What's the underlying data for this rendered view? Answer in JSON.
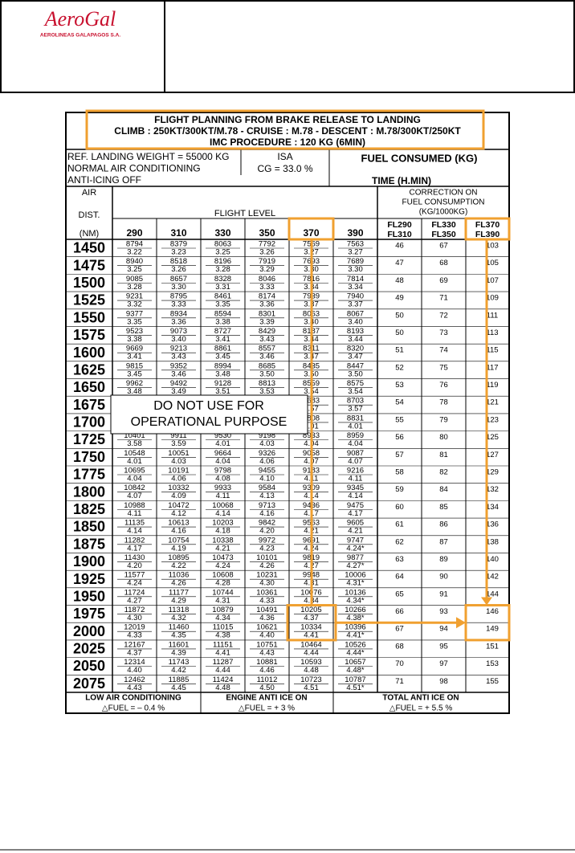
{
  "header": {
    "logo": "AeroGal",
    "logo_sub": "AEROLINEAS GALAPAGOS S.A."
  },
  "table": {
    "title_lines": [
      "FLIGHT PLANNING FROM BRAKE RELEASE TO LANDING",
      "CLIMB : 250KT/300KT/M.78 - CRUISE : M.78 - DESCENT : M.78/300KT/250KT",
      "IMC PROCEDURE : 120 KG (6MIN)"
    ],
    "ref_lines": [
      "REF. LANDING WEIGHT = 55000 KG",
      "NORMAL AIR CONDITIONING",
      "ANTI-ICING OFF"
    ],
    "isa": "ISA",
    "cg": "CG = 33.0 %",
    "fuel_consumed": "FUEL CONSUMED (KG)",
    "time": "TIME (H.MIN)",
    "air_dist": [
      "AIR",
      "DIST.",
      "(NM)"
    ],
    "flight_level": "FLIGHT LEVEL",
    "levels": [
      "290",
      "310",
      "330",
      "350",
      "370",
      "390"
    ],
    "correction": [
      "CORRECTION ON",
      "FUEL CONSUMPTION",
      "(KG/1000KG)"
    ],
    "correction_cols": [
      [
        "FL290",
        "FL310"
      ],
      [
        "FL330",
        "FL350"
      ],
      [
        "FL370",
        "FL390"
      ]
    ],
    "rows": [
      {
        "dist": "1450",
        "fuel": [
          "8794",
          "8379",
          "8063",
          "7792",
          "7569",
          "7563"
        ],
        "time": [
          "3.22",
          "3.23",
          "3.25",
          "3.26",
          "3.27",
          "3.27"
        ],
        "corr": [
          "46",
          "67",
          "103"
        ]
      },
      {
        "dist": "1475",
        "fuel": [
          "8940",
          "8518",
          "8196",
          "7919",
          "7693",
          "7689"
        ],
        "time": [
          "3.25",
          "3.26",
          "3.28",
          "3.29",
          "3.30",
          "3.30"
        ],
        "corr": [
          "47",
          "68",
          "105"
        ]
      },
      {
        "dist": "1500",
        "fuel": [
          "9085",
          "8657",
          "8328",
          "8046",
          "7816",
          "7814"
        ],
        "time": [
          "3.28",
          "3.30",
          "3.31",
          "3.33",
          "3.34",
          "3.34"
        ],
        "corr": [
          "48",
          "69",
          "107"
        ]
      },
      {
        "dist": "1525",
        "fuel": [
          "9231",
          "8795",
          "8461",
          "8174",
          "7939",
          "7940"
        ],
        "time": [
          "3.32",
          "3.33",
          "3.35",
          "3.36",
          "3.37",
          "3.37"
        ],
        "corr": [
          "49",
          "71",
          "109"
        ]
      },
      {
        "dist": "1550",
        "fuel": [
          "9377",
          "8934",
          "8594",
          "8301",
          "8063",
          "8067"
        ],
        "time": [
          "3.35",
          "3.36",
          "3.38",
          "3.39",
          "3.40",
          "3.40"
        ],
        "corr": [
          "50",
          "72",
          "111"
        ]
      },
      {
        "dist": "1575",
        "fuel": [
          "9523",
          "9073",
          "8727",
          "8429",
          "8187",
          "8193"
        ],
        "time": [
          "3.38",
          "3.40",
          "3.41",
          "3.43",
          "3.44",
          "3.44"
        ],
        "corr": [
          "50",
          "73",
          "113"
        ]
      },
      {
        "dist": "1600",
        "fuel": [
          "9669",
          "9213",
          "8861",
          "8557",
          "8311",
          "8320"
        ],
        "time": [
          "3.41",
          "3.43",
          "3.45",
          "3.46",
          "3.47",
          "3.47"
        ],
        "corr": [
          "51",
          "74",
          "115"
        ]
      },
      {
        "dist": "1625",
        "fuel": [
          "9815",
          "9352",
          "8994",
          "8685",
          "8435",
          "8447"
        ],
        "time": [
          "3.45",
          "3.46",
          "3.48",
          "3.50",
          "3.50",
          "3.50"
        ],
        "corr": [
          "52",
          "75",
          "117"
        ]
      },
      {
        "dist": "1650",
        "fuel": [
          "9962",
          "9492",
          "9128",
          "8813",
          "8559",
          "8575"
        ],
        "time": [
          "3.48",
          "3.49",
          "3.51",
          "3.53",
          "3.54",
          "3.54"
        ],
        "corr": [
          "53",
          "76",
          "119"
        ]
      },
      {
        "dist": "1675",
        "fuel": [
          "10108",
          "9631",
          "9261",
          "8941",
          "8683",
          "8703"
        ],
        "time": [
          "3.51",
          "3.53",
          "3.55",
          "3.56",
          "3.57",
          "3.57"
        ],
        "corr": [
          "54",
          "78",
          "121"
        ]
      },
      {
        "dist": "1700",
        "fuel": [
          "10254",
          "9771",
          "9395",
          "9069",
          "8808",
          "8831"
        ],
        "time": [
          "3.55",
          "3.56",
          "3.58",
          "3.60",
          "4.01",
          "4.01"
        ],
        "corr": [
          "55",
          "79",
          "123"
        ]
      },
      {
        "dist": "1725",
        "fuel": [
          "10401",
          "9911",
          "9530",
          "9198",
          "8933",
          "8959"
        ],
        "time": [
          "3.58",
          "3.59",
          "4.01",
          "4.03",
          "4.04",
          "4.04"
        ],
        "corr": [
          "56",
          "80",
          "125"
        ]
      },
      {
        "dist": "1750",
        "fuel": [
          "10548",
          "10051",
          "9664",
          "9326",
          "9058",
          "9087"
        ],
        "time": [
          "4.01",
          "4.03",
          "4.04",
          "4.06",
          "4.07",
          "4.07"
        ],
        "corr": [
          "57",
          "81",
          "127"
        ]
      },
      {
        "dist": "1775",
        "fuel": [
          "10695",
          "10191",
          "9798",
          "9455",
          "9183",
          "9216"
        ],
        "time": [
          "4.04",
          "4.06",
          "4.08",
          "4.10",
          "4.11",
          "4.11"
        ],
        "corr": [
          "58",
          "82",
          "129"
        ]
      },
      {
        "dist": "1800",
        "fuel": [
          "10842",
          "10332",
          "9933",
          "9584",
          "9309",
          "9345"
        ],
        "time": [
          "4.07",
          "4.09",
          "4.11",
          "4.13",
          "4.14",
          "4.14"
        ],
        "corr": [
          "59",
          "84",
          "132"
        ]
      },
      {
        "dist": "1825",
        "fuel": [
          "10988",
          "10472",
          "10068",
          "9713",
          "9436",
          "9475"
        ],
        "time": [
          "4.11",
          "4.12",
          "4.14",
          "4.16",
          "4.17",
          "4.17"
        ],
        "corr": [
          "60",
          "85",
          "134"
        ]
      },
      {
        "dist": "1850",
        "fuel": [
          "11135",
          "10613",
          "10203",
          "9842",
          "9563",
          "9605"
        ],
        "time": [
          "4.14",
          "4.16",
          "4.18",
          "4.20",
          "4.21",
          "4.21"
        ],
        "corr": [
          "61",
          "86",
          "136"
        ]
      },
      {
        "dist": "1875",
        "fuel": [
          "11282",
          "10754",
          "10338",
          "9972",
          "9691",
          "9747"
        ],
        "time": [
          "4.17",
          "4.19",
          "4.21",
          "4.23",
          "4.24",
          "4.24*"
        ],
        "corr": [
          "62",
          "87",
          "138"
        ]
      },
      {
        "dist": "1900",
        "fuel": [
          "11430",
          "10895",
          "10473",
          "10101",
          "9819",
          "9877"
        ],
        "time": [
          "4.20",
          "4.22",
          "4.24",
          "4.26",
          "4.27",
          "4.27*"
        ],
        "corr": [
          "63",
          "89",
          "140"
        ]
      },
      {
        "dist": "1925",
        "fuel": [
          "11577",
          "11036",
          "10608",
          "10231",
          "9948",
          "10006"
        ],
        "time": [
          "4.24",
          "4.26",
          "4.28",
          "4.30",
          "4.31",
          "4.31*"
        ],
        "corr": [
          "64",
          "90",
          "142"
        ]
      },
      {
        "dist": "1950",
        "fuel": [
          "11724",
          "11177",
          "10744",
          "10361",
          "10076",
          "10136"
        ],
        "time": [
          "4.27",
          "4.29",
          "4.31",
          "4.33",
          "4.34",
          "4.34*"
        ],
        "corr": [
          "65",
          "91",
          "144"
        ]
      },
      {
        "dist": "1975",
        "fuel": [
          "11872",
          "11318",
          "10879",
          "10491",
          "10205",
          "10266"
        ],
        "time": [
          "4.30",
          "4.32",
          "4.34",
          "4.36",
          "4.37",
          "4.38*"
        ],
        "corr": [
          "66",
          "93",
          "146"
        ]
      },
      {
        "dist": "2000",
        "fuel": [
          "12019",
          "11460",
          "11015",
          "10621",
          "10334",
          "10396"
        ],
        "time": [
          "4.33",
          "4.35",
          "4.38",
          "4.40",
          "4.41",
          "4.41*"
        ],
        "corr": [
          "67",
          "94",
          "149"
        ]
      },
      {
        "dist": "2025",
        "fuel": [
          "12167",
          "11601",
          "11151",
          "10751",
          "10464",
          "10526"
        ],
        "time": [
          "4.37",
          "4.39",
          "4.41",
          "4.43",
          "4.44",
          "4.44*"
        ],
        "corr": [
          "68",
          "95",
          "151"
        ]
      },
      {
        "dist": "2050",
        "fuel": [
          "12314",
          "11743",
          "11287",
          "10881",
          "10593",
          "10657"
        ],
        "time": [
          "4.40",
          "4.42",
          "4.44",
          "4.46",
          "4.48",
          "4.48*"
        ],
        "corr": [
          "70",
          "97",
          "153"
        ]
      },
      {
        "dist": "2075",
        "fuel": [
          "12462",
          "11885",
          "11424",
          "11012",
          "10723",
          "10787"
        ],
        "time": [
          "4.43",
          "4.45",
          "4.48",
          "4.50",
          "4.51",
          "4.51*"
        ],
        "corr": [
          "71",
          "98",
          "155"
        ]
      }
    ],
    "footer": [
      [
        "LOW AIR CONDITIONING",
        "△FUEL = – 0.4 %"
      ],
      [
        "ENGINE ANTI ICE ON",
        "△FUEL = + 3 %"
      ],
      [
        "TOTAL ANTI ICE ON",
        "△FUEL = + 5.5 %"
      ]
    ]
  },
  "overlay": [
    "DO NOT USE FOR",
    "OPERATIONAL PURPOSE"
  ]
}
